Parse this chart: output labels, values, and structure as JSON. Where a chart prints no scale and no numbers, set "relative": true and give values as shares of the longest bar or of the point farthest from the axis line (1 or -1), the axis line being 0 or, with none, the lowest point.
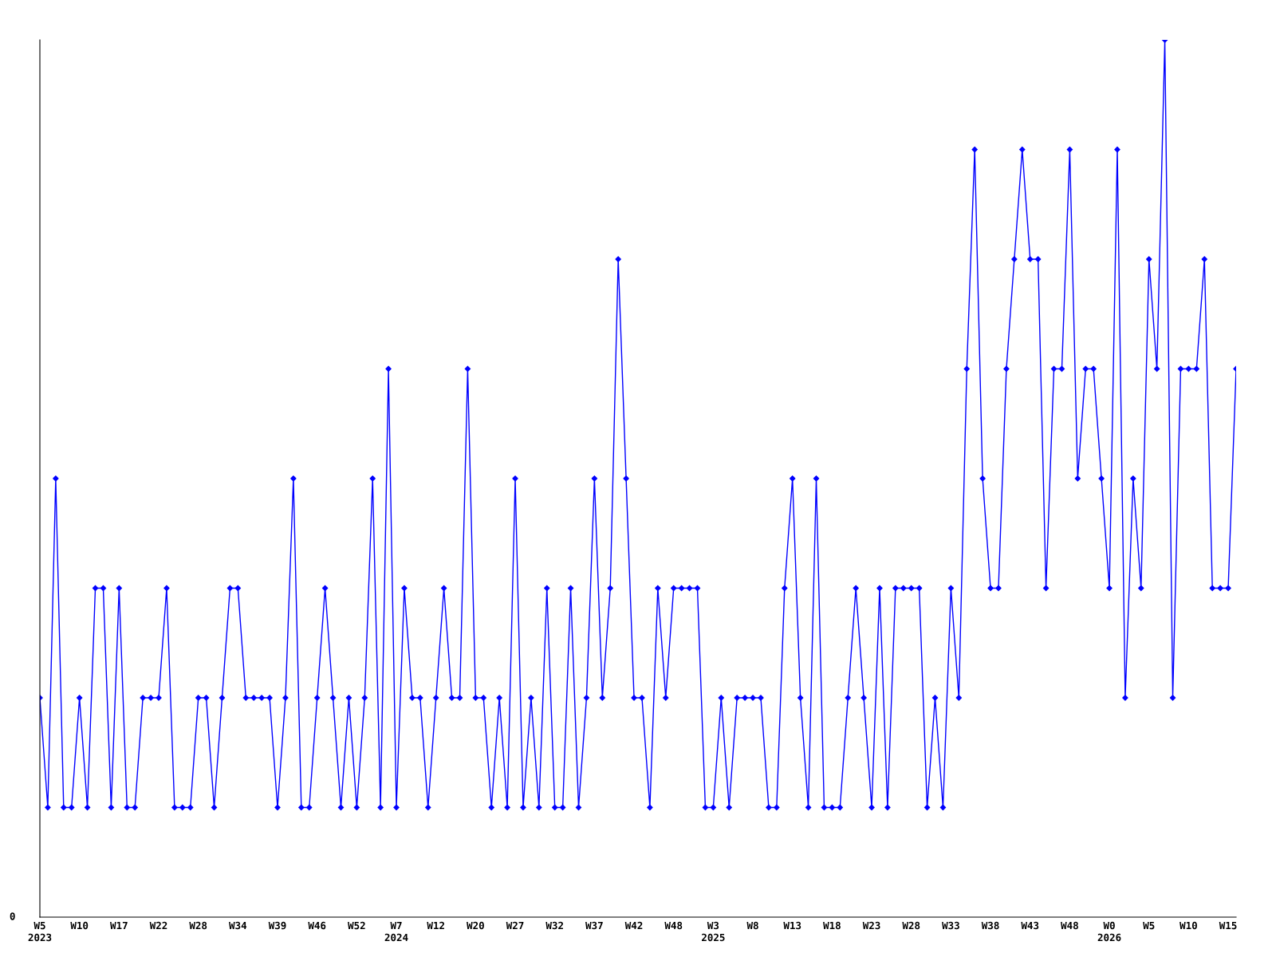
{
  "chart_data": {
    "type": "line",
    "relative": true,
    "annotations": [
      "0"
    ],
    "marker": "diamond",
    "grid": false,
    "legend": false,
    "categories": [
      "W5\n2023",
      null,
      null,
      null,
      null,
      "W10",
      null,
      null,
      null,
      null,
      "W17",
      null,
      null,
      null,
      null,
      "W22",
      null,
      null,
      null,
      null,
      "W28",
      null,
      null,
      null,
      null,
      "W34",
      null,
      null,
      null,
      null,
      "W39",
      null,
      null,
      null,
      null,
      "W46",
      null,
      null,
      null,
      null,
      "W52",
      null,
      null,
      null,
      null,
      "W7\n2024",
      null,
      null,
      null,
      null,
      "W12",
      null,
      null,
      null,
      null,
      "W20",
      null,
      null,
      null,
      null,
      "W27",
      null,
      null,
      null,
      null,
      "W32",
      null,
      null,
      null,
      null,
      "W37",
      null,
      null,
      null,
      null,
      "W42",
      null,
      null,
      null,
      null,
      "W48",
      null,
      null,
      null,
      null,
      "W3\n2025",
      null,
      null,
      null,
      null,
      "W8",
      null,
      null,
      null,
      null,
      "W13",
      null,
      null,
      null,
      null,
      "W18",
      null,
      null,
      null,
      null,
      "W23",
      null,
      null,
      null,
      null,
      "W28",
      null,
      null,
      null,
      null,
      "W33",
      null,
      null,
      null,
      null,
      "W38",
      null,
      null,
      null,
      null,
      "W43",
      null,
      null,
      null,
      null,
      "W48",
      null,
      null,
      null,
      null,
      "W0\n2026",
      null,
      null,
      null,
      null,
      "W5",
      null,
      null,
      null,
      null,
      "W10",
      null,
      null,
      null,
      null,
      "W15",
      null
    ],
    "series": [
      {
        "color": "#0000ff",
        "values": [
          0.25,
          0.125,
          0.5,
          0.125,
          0.125,
          0.25,
          0.125,
          0.375,
          0.375,
          0.125,
          0.375,
          0.125,
          0.125,
          0.25,
          0.25,
          0.25,
          0.375,
          0.125,
          0.125,
          0.125,
          0.25,
          0.25,
          0.125,
          0.25,
          0.375,
          0.375,
          0.25,
          0.25,
          0.25,
          0.25,
          0.125,
          0.25,
          0.5,
          0.125,
          0.125,
          0.25,
          0.375,
          0.25,
          0.125,
          0.25,
          0.125,
          0.25,
          0.5,
          0.125,
          0.625,
          0.125,
          0.375,
          0.25,
          0.25,
          0.125,
          0.25,
          0.375,
          0.25,
          0.25,
          0.625,
          0.25,
          0.25,
          0.125,
          0.25,
          0.125,
          0.5,
          0.125,
          0.25,
          0.125,
          0.375,
          0.125,
          0.125,
          0.375,
          0.125,
          0.25,
          0.5,
          0.25,
          0.375,
          0.75,
          0.5,
          0.25,
          0.25,
          0.125,
          0.375,
          0.25,
          0.375,
          0.375,
          0.375,
          0.375,
          0.125,
          0.125,
          0.25,
          0.125,
          0.25,
          0.25,
          0.25,
          0.25,
          0.125,
          0.125,
          0.375,
          0.5,
          0.25,
          0.125,
          0.5,
          0.125,
          0.125,
          0.125,
          0.25,
          0.375,
          0.25,
          0.125,
          0.375,
          0.125,
          0.375,
          0.375,
          0.375,
          0.375,
          0.125,
          0.25,
          0.125,
          0.375,
          0.25,
          0.625,
          0.875,
          0.5,
          0.375,
          0.375,
          0.625,
          0.75,
          0.875,
          0.75,
          0.75,
          0.375,
          0.625,
          0.625,
          0.875,
          0.5,
          0.625,
          0.625,
          0.5,
          0.375,
          0.875,
          0.25,
          0.5,
          0.375,
          0.75,
          0.625,
          1,
          0.25,
          0.625,
          0.625,
          0.625,
          0.75,
          0.375,
          0.375,
          0.375,
          0.625
        ]
      }
    ]
  }
}
